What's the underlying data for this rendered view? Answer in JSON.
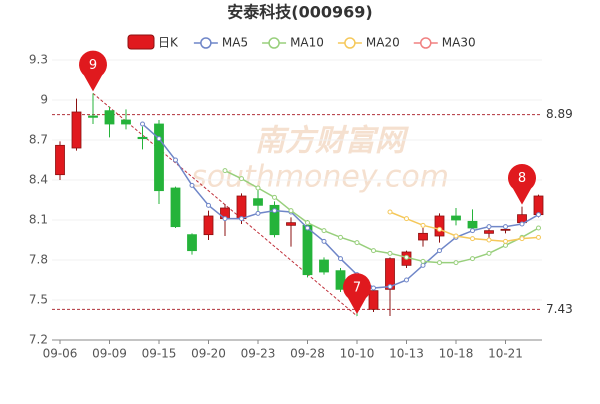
{
  "chart_data": {
    "type": "candlestick",
    "title": "安泰科技(000969)",
    "watermark": [
      "南方财富网",
      "southmoney.com"
    ],
    "categories": [
      "09-06",
      null,
      null,
      "09-09",
      null,
      null,
      "09-15",
      null,
      null,
      "09-20",
      null,
      null,
      "09-23",
      null,
      null,
      "09-28",
      null,
      null,
      "10-10",
      null,
      null,
      "10-13",
      null,
      null,
      "10-18",
      null,
      null,
      "10-21",
      null,
      null
    ],
    "candles": {
      "name": "日K",
      "up_color": "#e0191e",
      "down_color": "#25b33a",
      "open": [
        8.44,
        8.64,
        8.88,
        8.92,
        8.85,
        8.72,
        8.82,
        8.34,
        7.99,
        7.99,
        8.11,
        8.11,
        8.26,
        8.21,
        8.06,
        8.06,
        7.8,
        7.72,
        7.62,
        7.43,
        7.58,
        7.76,
        7.95,
        7.98,
        8.13,
        8.09,
        8.0,
        8.03,
        8.08,
        8.14
      ],
      "close": [
        8.66,
        8.91,
        8.87,
        8.82,
        8.82,
        8.71,
        8.32,
        8.05,
        7.87,
        8.13,
        8.19,
        8.28,
        8.21,
        7.99,
        8.08,
        7.69,
        7.71,
        7.58,
        7.48,
        7.57,
        7.81,
        7.86,
        8.0,
        8.13,
        8.1,
        8.04,
        8.02,
        8.03,
        8.14,
        8.28
      ],
      "high": [
        8.69,
        9.01,
        9.05,
        8.95,
        8.93,
        8.8,
        8.85,
        8.35,
        8.0,
        8.17,
        8.22,
        8.3,
        8.34,
        8.24,
        8.12,
        8.1,
        7.82,
        7.74,
        7.64,
        7.59,
        7.82,
        7.87,
        8.04,
        8.15,
        8.19,
        8.18,
        8.05,
        8.06,
        8.2,
        8.29
      ],
      "low": [
        8.4,
        8.62,
        8.82,
        8.72,
        8.78,
        8.63,
        8.22,
        8.04,
        7.84,
        7.95,
        7.98,
        8.07,
        8.16,
        7.97,
        7.9,
        7.67,
        7.69,
        7.56,
        7.38,
        7.41,
        7.38,
        7.74,
        7.9,
        7.93,
        8.06,
        8.01,
        7.95,
        8.0,
        8.06,
        8.12
      ]
    },
    "series": [
      {
        "name": "MA5",
        "color": "#6f86c8",
        "values": [
          null,
          null,
          null,
          null,
          null,
          8.82,
          8.71,
          8.55,
          8.36,
          8.21,
          8.11,
          8.11,
          8.15,
          8.17,
          8.16,
          8.04,
          7.94,
          7.81,
          7.69,
          7.59,
          7.6,
          7.65,
          7.76,
          7.87,
          7.97,
          8.02,
          8.05,
          8.05,
          8.07,
          8.14
        ]
      },
      {
        "name": "MA10",
        "color": "#98cf7c",
        "values": [
          null,
          null,
          null,
          null,
          null,
          null,
          null,
          null,
          null,
          null,
          8.47,
          8.41,
          8.34,
          8.27,
          8.17,
          8.08,
          8.02,
          7.97,
          7.93,
          7.87,
          7.85,
          7.82,
          7.79,
          7.78,
          7.78,
          7.81,
          7.85,
          7.91,
          7.97,
          8.04
        ]
      },
      {
        "name": "MA20",
        "color": "#f5c85a",
        "values": [
          null,
          null,
          null,
          null,
          null,
          null,
          null,
          null,
          null,
          null,
          null,
          null,
          null,
          null,
          null,
          null,
          null,
          null,
          null,
          null,
          8.16,
          8.11,
          8.06,
          8.03,
          7.98,
          7.96,
          7.95,
          7.94,
          7.96,
          7.97
        ]
      },
      {
        "name": "MA30",
        "color": "#f08080",
        "values": [
          null,
          null,
          null,
          null,
          null,
          null,
          null,
          null,
          null,
          null,
          null,
          null,
          null,
          null,
          null,
          null,
          null,
          null,
          null,
          null,
          null,
          null,
          null,
          null,
          null,
          null,
          null,
          null,
          null,
          null
        ]
      }
    ],
    "pins": [
      null,
      null,
      "9",
      null,
      null,
      null,
      null,
      null,
      null,
      null,
      null,
      null,
      null,
      null,
      null,
      null,
      null,
      null,
      "7",
      null,
      null,
      null,
      null,
      null,
      null,
      null,
      null,
      null,
      "8",
      null
    ],
    "pin_color": "#e0191e",
    "hlines": [
      8.89,
      7.43
    ],
    "ylim": [
      7.2,
      9.3
    ],
    "yticks": [
      7.2,
      7.5,
      7.8,
      8.1,
      8.4,
      8.7,
      9,
      9.3
    ]
  }
}
